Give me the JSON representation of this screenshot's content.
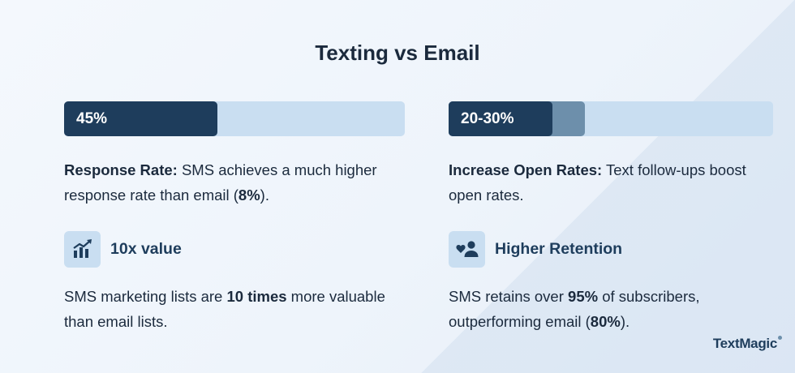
{
  "title": "Texting vs Email",
  "left": {
    "bar": {
      "label": "45%",
      "fill_fraction": 0.45
    },
    "desc": {
      "bold": "Response Rate:",
      "text": " SMS achieves a much higher response rate than email (",
      "bold2": "8%",
      "end": ")."
    },
    "feature": {
      "icon": "bar-chart-growth-icon",
      "title": "10x value",
      "desc": {
        "pre": "SMS marketing lists are ",
        "bold": "10 times",
        "post": " more valuable than email lists."
      }
    }
  },
  "right": {
    "bar": {
      "label": "20-30%",
      "fill_fraction_low": 0.2,
      "fill_fraction_high": 0.3
    },
    "desc": {
      "bold": "Increase Open Rates:",
      "text": " Text follow-ups boost open rates."
    },
    "feature": {
      "icon": "heart-person-icon",
      "title": "Higher Retention",
      "desc": {
        "pre": "SMS retains over ",
        "bold": "95%",
        "mid": " of subscribers, outperforming email (",
        "bold2": "80%",
        "end": ")."
      }
    }
  },
  "brand": {
    "logo_text": "TextMagic"
  },
  "colors": {
    "dark": "#1e3d5c",
    "light": "#c9def1",
    "mid": "#6d8fab",
    "text": "#1b2a3d"
  }
}
